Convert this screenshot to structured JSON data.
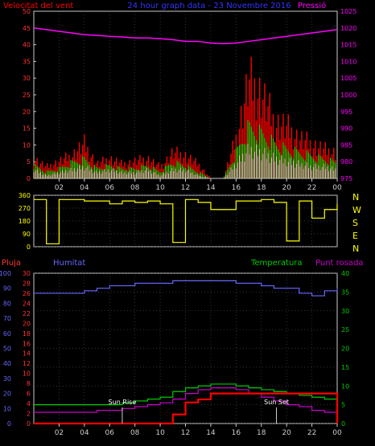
{
  "header": {
    "left_label": "Velocitat del vent",
    "center_label": "24 hour graph data - 23 Novembre 2016",
    "right_label": "Pressió"
  },
  "colors": {
    "wind_gust": "#ff0000",
    "wind_avg": "#00ff00",
    "wind_speed": "#ffffff",
    "pressure": "#ff00ff",
    "direction": "#ffff00",
    "humidity": "#6666ff",
    "temperature": "#00cc00",
    "dew_point": "#cc00cc",
    "rain": "#ff0000",
    "frame": "#cccccc",
    "grid": "#666666"
  },
  "x_ticks": [
    "02",
    "04",
    "06",
    "08",
    "10",
    "12",
    "14",
    "16",
    "18",
    "20",
    "22",
    "00"
  ],
  "chart_data": [
    {
      "type": "line",
      "name": "wind-pressure",
      "ylabel_left": "Velocitat del vent",
      "ylabel_right": "Pressió",
      "ylim_left": [
        0,
        50
      ],
      "ylim_right": [
        975,
        1025
      ],
      "yticks_left": [
        "0",
        "5",
        "10",
        "15",
        "20",
        "25",
        "30",
        "35",
        "40",
        "45",
        "50"
      ],
      "yticks_right": [
        "975",
        "980",
        "985",
        "990",
        "995",
        "1000",
        "1005",
        "1010",
        "1015",
        "1020",
        "1025"
      ],
      "x_hours": [
        0,
        1,
        2,
        3,
        4,
        5,
        6,
        7,
        8,
        9,
        10,
        11,
        12,
        13,
        14,
        15,
        16,
        17,
        18,
        19,
        20,
        21,
        22,
        23,
        24
      ],
      "series": [
        {
          "name": "Pressió",
          "axis": "right",
          "values": [
            1020,
            1019.5,
            1019,
            1018.5,
            1018,
            1017.8,
            1017.5,
            1017.3,
            1017,
            1017,
            1016.8,
            1016.5,
            1016,
            1016,
            1015.5,
            1015.3,
            1015.5,
            1016,
            1016.5,
            1017,
            1017.5,
            1018,
            1018.5,
            1019,
            1019.5
          ]
        },
        {
          "name": "gust",
          "axis": "left",
          "values": [
            7,
            4,
            6,
            8,
            12,
            5,
            7,
            5,
            6,
            7,
            4,
            9,
            8,
            5,
            0,
            0,
            14,
            34,
            30,
            20,
            18,
            14,
            12,
            10,
            9
          ]
        },
        {
          "name": "avg",
          "axis": "left",
          "values": [
            4,
            2,
            3,
            5,
            6,
            3,
            4,
            3,
            3,
            4,
            2,
            5,
            4,
            2,
            0,
            0,
            8,
            16,
            14,
            11,
            9,
            8,
            7,
            6,
            5
          ]
        },
        {
          "name": "speed",
          "axis": "left",
          "values": [
            3,
            1,
            2,
            3,
            4,
            2,
            3,
            2,
            2,
            3,
            1,
            3,
            3,
            1,
            0,
            0,
            5,
            10,
            9,
            7,
            6,
            5,
            4,
            4,
            3
          ]
        }
      ]
    },
    {
      "type": "line",
      "name": "wind-direction",
      "ylim": [
        0,
        360
      ],
      "yticks": [
        "0",
        "90",
        "180",
        "270",
        "360"
      ],
      "compass_labels": [
        "N",
        "W",
        "S",
        "E",
        "N"
      ],
      "x_hours": [
        0,
        1,
        2,
        3,
        4,
        5,
        6,
        7,
        8,
        9,
        10,
        11,
        12,
        13,
        14,
        15,
        16,
        17,
        18,
        19,
        20,
        21,
        22,
        23,
        24
      ],
      "values": [
        330,
        20,
        330,
        330,
        320,
        320,
        300,
        320,
        310,
        320,
        300,
        30,
        330,
        310,
        260,
        260,
        320,
        320,
        330,
        310,
        40,
        320,
        200,
        260,
        300
      ]
    },
    {
      "type": "line",
      "name": "weather",
      "left_outer_label": "Pluja",
      "left_inner_label": "Humitat",
      "right_inner_label": "Temperatura",
      "right_outer_label": "Punt rosada",
      "ylim_rain": [
        0,
        100
      ],
      "ylim_humidity": [
        0,
        30
      ],
      "ylim_temperature": [
        0,
        40
      ],
      "yticks_rain": [
        "0",
        "10",
        "20",
        "30",
        "40",
        "50",
        "60",
        "70",
        "80",
        "90",
        "100"
      ],
      "yticks_humidity": [
        "0",
        "2",
        "4",
        "6",
        "8",
        "10",
        "12",
        "14",
        "16",
        "18",
        "20",
        "22",
        "24",
        "26",
        "28",
        "30"
      ],
      "yticks_temperature": [
        "0",
        "5",
        "10",
        "15",
        "20",
        "25",
        "30",
        "35",
        "40"
      ],
      "annotations": [
        "Sun Rise",
        "Sun Set"
      ],
      "x_hours": [
        0,
        1,
        2,
        3,
        4,
        5,
        6,
        7,
        8,
        9,
        10,
        11,
        12,
        13,
        14,
        15,
        16,
        17,
        18,
        19,
        20,
        21,
        22,
        23,
        24
      ],
      "series": [
        {
          "name": "Humitat",
          "axis": "humidity",
          "values": [
            26,
            26,
            26,
            26,
            26.5,
            27,
            27.5,
            27.5,
            28,
            28,
            28,
            28.5,
            28.5,
            28.5,
            28.5,
            28.5,
            28,
            28,
            27.5,
            27,
            27,
            26,
            25.5,
            26.5,
            27
          ]
        },
        {
          "name": "Temperatura",
          "axis": "temperature",
          "values": [
            5,
            5,
            5,
            5,
            5,
            5,
            5,
            5.5,
            6,
            6.5,
            7,
            8.5,
            9.5,
            10,
            10.5,
            10.5,
            10,
            9.5,
            9,
            8.5,
            8,
            7.5,
            7,
            6.5,
            6
          ]
        },
        {
          "name": "Punt rosada",
          "axis": "temperature",
          "values": [
            3,
            3,
            3,
            3,
            3,
            3.5,
            3.5,
            4,
            4.5,
            5,
            5.5,
            6.5,
            8,
            9,
            9.5,
            9.5,
            9,
            8,
            7,
            6,
            5,
            4.5,
            3.5,
            3,
            2.5
          ]
        },
        {
          "name": "Pluja",
          "axis": "rain",
          "values": [
            0,
            0,
            0,
            0,
            0,
            0,
            0,
            0,
            0,
            0,
            0,
            6,
            14,
            16,
            20,
            20,
            20,
            20,
            20,
            20,
            20,
            20,
            20,
            20,
            0
          ]
        }
      ]
    }
  ]
}
